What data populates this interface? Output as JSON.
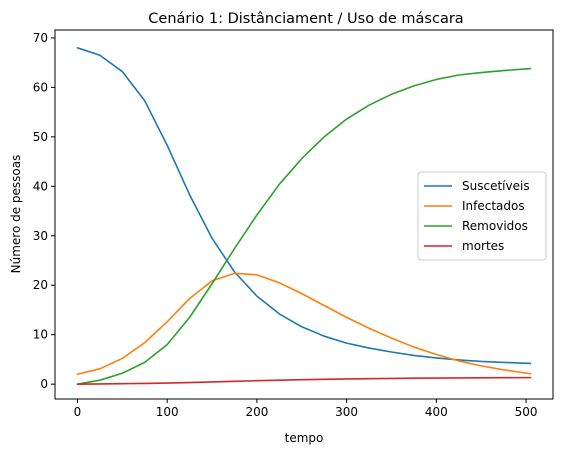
{
  "chart_data": {
    "type": "line",
    "title": "Cenário 1: Distânciament / Uso de máscara",
    "xlabel": "tempo",
    "ylabel": "Número de pessoas",
    "xlim": [
      -25,
      530
    ],
    "ylim": [
      -3,
      71.6
    ],
    "xticks": [
      0,
      100,
      200,
      300,
      400,
      500
    ],
    "yticks": [
      0,
      10,
      20,
      30,
      40,
      50,
      60,
      70
    ],
    "grid": false,
    "legend_position": "center-right",
    "series": [
      {
        "name": "Suscetíveis",
        "color": "#1f77b4",
        "x": [
          0,
          25,
          50,
          75,
          100,
          125,
          150,
          175,
          200,
          225,
          250,
          275,
          300,
          325,
          350,
          375,
          400,
          425,
          450,
          475,
          505
        ],
        "y": [
          68,
          66.5,
          63.2,
          57.3,
          48.3,
          38.3,
          29.5,
          22.7,
          17.8,
          14.2,
          11.6,
          9.7,
          8.3,
          7.3,
          6.5,
          5.8,
          5.3,
          4.9,
          4.6,
          4.4,
          4.2
        ]
      },
      {
        "name": "Infectados",
        "color": "#ff7f0e",
        "x": [
          0,
          25,
          50,
          75,
          100,
          125,
          150,
          175,
          200,
          225,
          250,
          275,
          300,
          325,
          350,
          375,
          400,
          425,
          450,
          475,
          505
        ],
        "y": [
          2,
          3.1,
          5.2,
          8.4,
          12.6,
          17.3,
          20.9,
          22.4,
          22.1,
          20.5,
          18.3,
          15.9,
          13.5,
          11.3,
          9.3,
          7.5,
          6.0,
          4.7,
          3.7,
          2.9,
          2.1
        ]
      },
      {
        "name": "Removidos",
        "color": "#2ca02c",
        "x": [
          0,
          25,
          50,
          75,
          100,
          125,
          150,
          175,
          200,
          225,
          250,
          275,
          300,
          325,
          350,
          375,
          400,
          425,
          450,
          475,
          505
        ],
        "y": [
          0,
          0.8,
          2.2,
          4.4,
          8.0,
          13.5,
          20.3,
          27.4,
          34.2,
          40.4,
          45.6,
          50.0,
          53.6,
          56.4,
          58.6,
          60.3,
          61.6,
          62.5,
          63.0,
          63.4,
          63.8
        ]
      },
      {
        "name": "mortes",
        "color": "#d62728",
        "x": [
          0,
          25,
          50,
          75,
          100,
          125,
          150,
          175,
          200,
          225,
          250,
          275,
          300,
          325,
          350,
          375,
          400,
          425,
          450,
          475,
          505
        ],
        "y": [
          0,
          0.05,
          0.1,
          0.15,
          0.22,
          0.32,
          0.45,
          0.58,
          0.7,
          0.8,
          0.9,
          0.98,
          1.05,
          1.1,
          1.15,
          1.2,
          1.23,
          1.26,
          1.28,
          1.3,
          1.32
        ]
      }
    ]
  }
}
